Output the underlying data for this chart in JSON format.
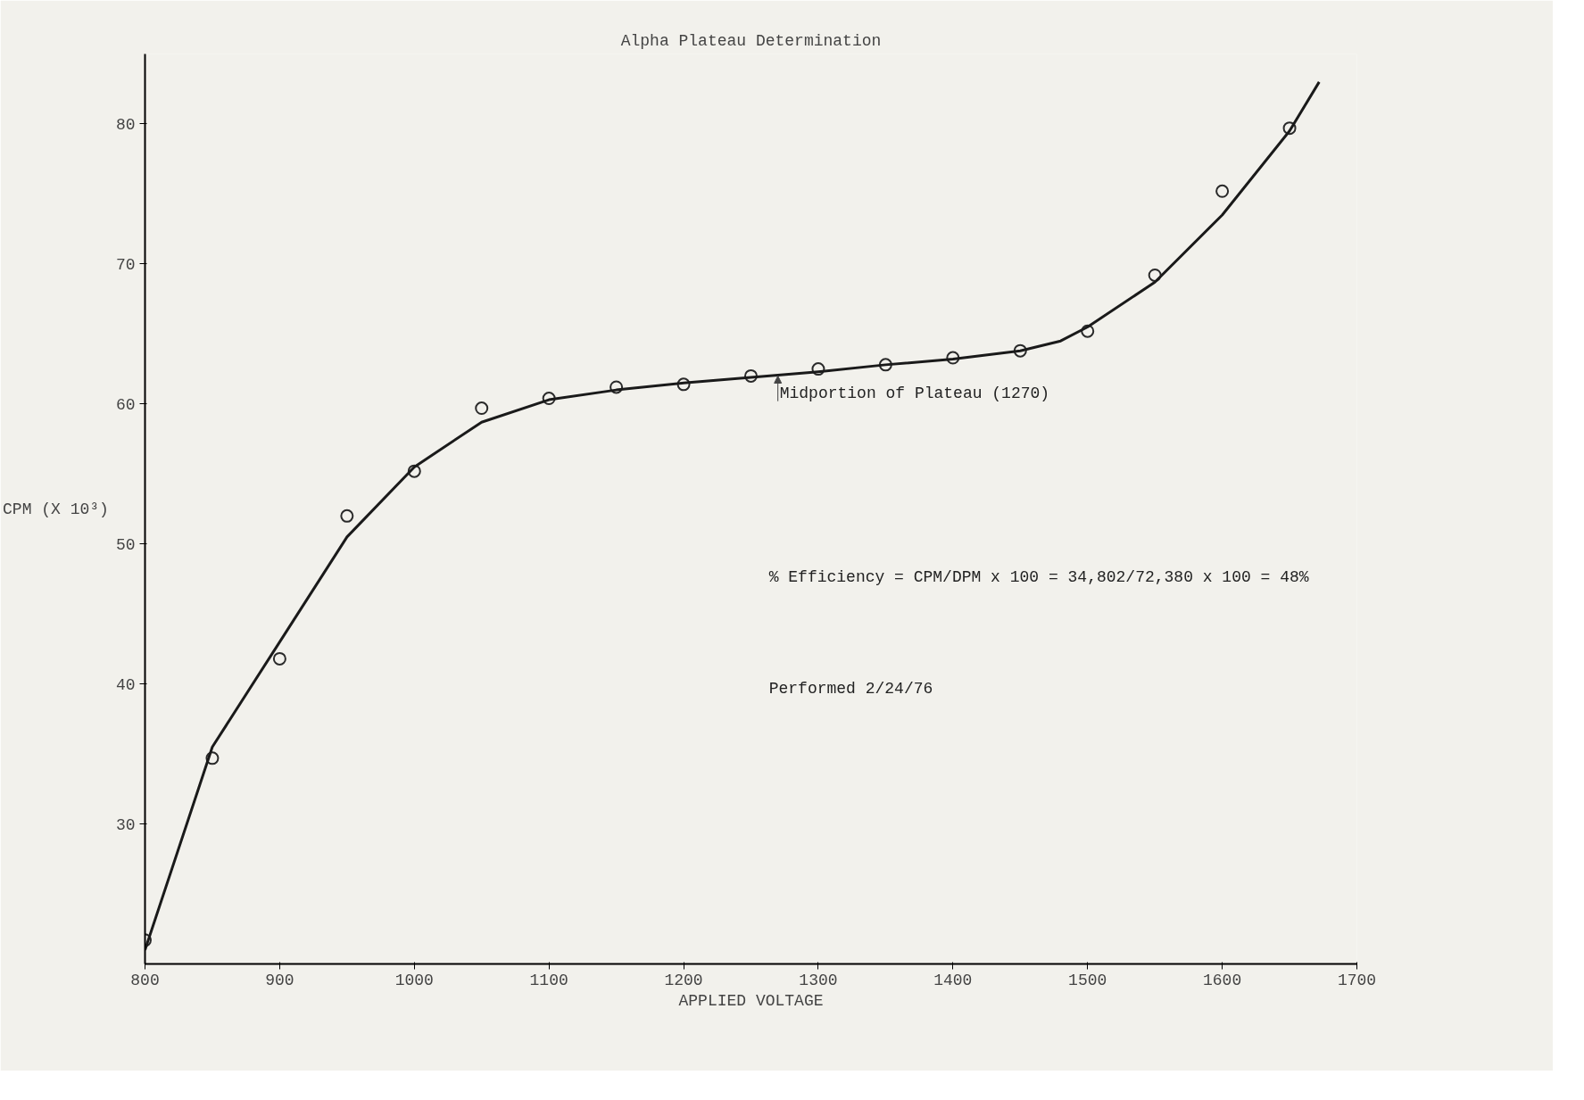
{
  "chart_data": {
    "type": "scatter",
    "title": "Alpha Plateau Determination",
    "xlabel": "APPLIED VOLTAGE",
    "ylabel": "CPM (X 10³)",
    "xlim": [
      800,
      1700
    ],
    "ylim": [
      20,
      85
    ],
    "xticks": [
      800,
      900,
      1000,
      1100,
      1200,
      1300,
      1400,
      1500,
      1600,
      1700
    ],
    "yticks": [
      30,
      40,
      50,
      60,
      70,
      80
    ],
    "grid": false,
    "series": [
      {
        "marker": "circle",
        "color": "#2a2a2a",
        "x": [
          800,
          850,
          900,
          950,
          1000,
          1050,
          1100,
          1150,
          1200,
          1250,
          1300,
          1350,
          1400,
          1450,
          1500,
          1550,
          1600,
          1650
        ],
        "values": [
          21.7,
          34.7,
          41.8,
          52.0,
          55.2,
          59.7,
          60.4,
          61.2,
          61.4,
          62.0,
          62.5,
          62.8,
          63.3,
          63.8,
          65.2,
          69.2,
          75.2,
          79.7
        ]
      },
      {
        "type": "line",
        "marker": "none",
        "line_style": "solid",
        "color": "#1a1a1a",
        "x": [
          800,
          850,
          900,
          950,
          1000,
          1050,
          1100,
          1150,
          1200,
          1250,
          1300,
          1350,
          1400,
          1450,
          1480,
          1500,
          1550,
          1600,
          1650,
          1672
        ],
        "values": [
          21,
          35.5,
          43,
          50.5,
          55.5,
          58.7,
          60.3,
          61.0,
          61.5,
          61.9,
          62.3,
          62.8,
          63.2,
          63.8,
          64.5,
          65.5,
          68.7,
          73.5,
          79.5,
          83
        ]
      }
    ],
    "annotations": [
      {
        "text": "Midportion of Plateau (1270)",
        "x": 1270,
        "y": 62
      },
      "% Efficiency = CPM/DPM x 100 = 34,802/72,380 x 100 = 48%",
      "Performed 2/24/76"
    ]
  }
}
